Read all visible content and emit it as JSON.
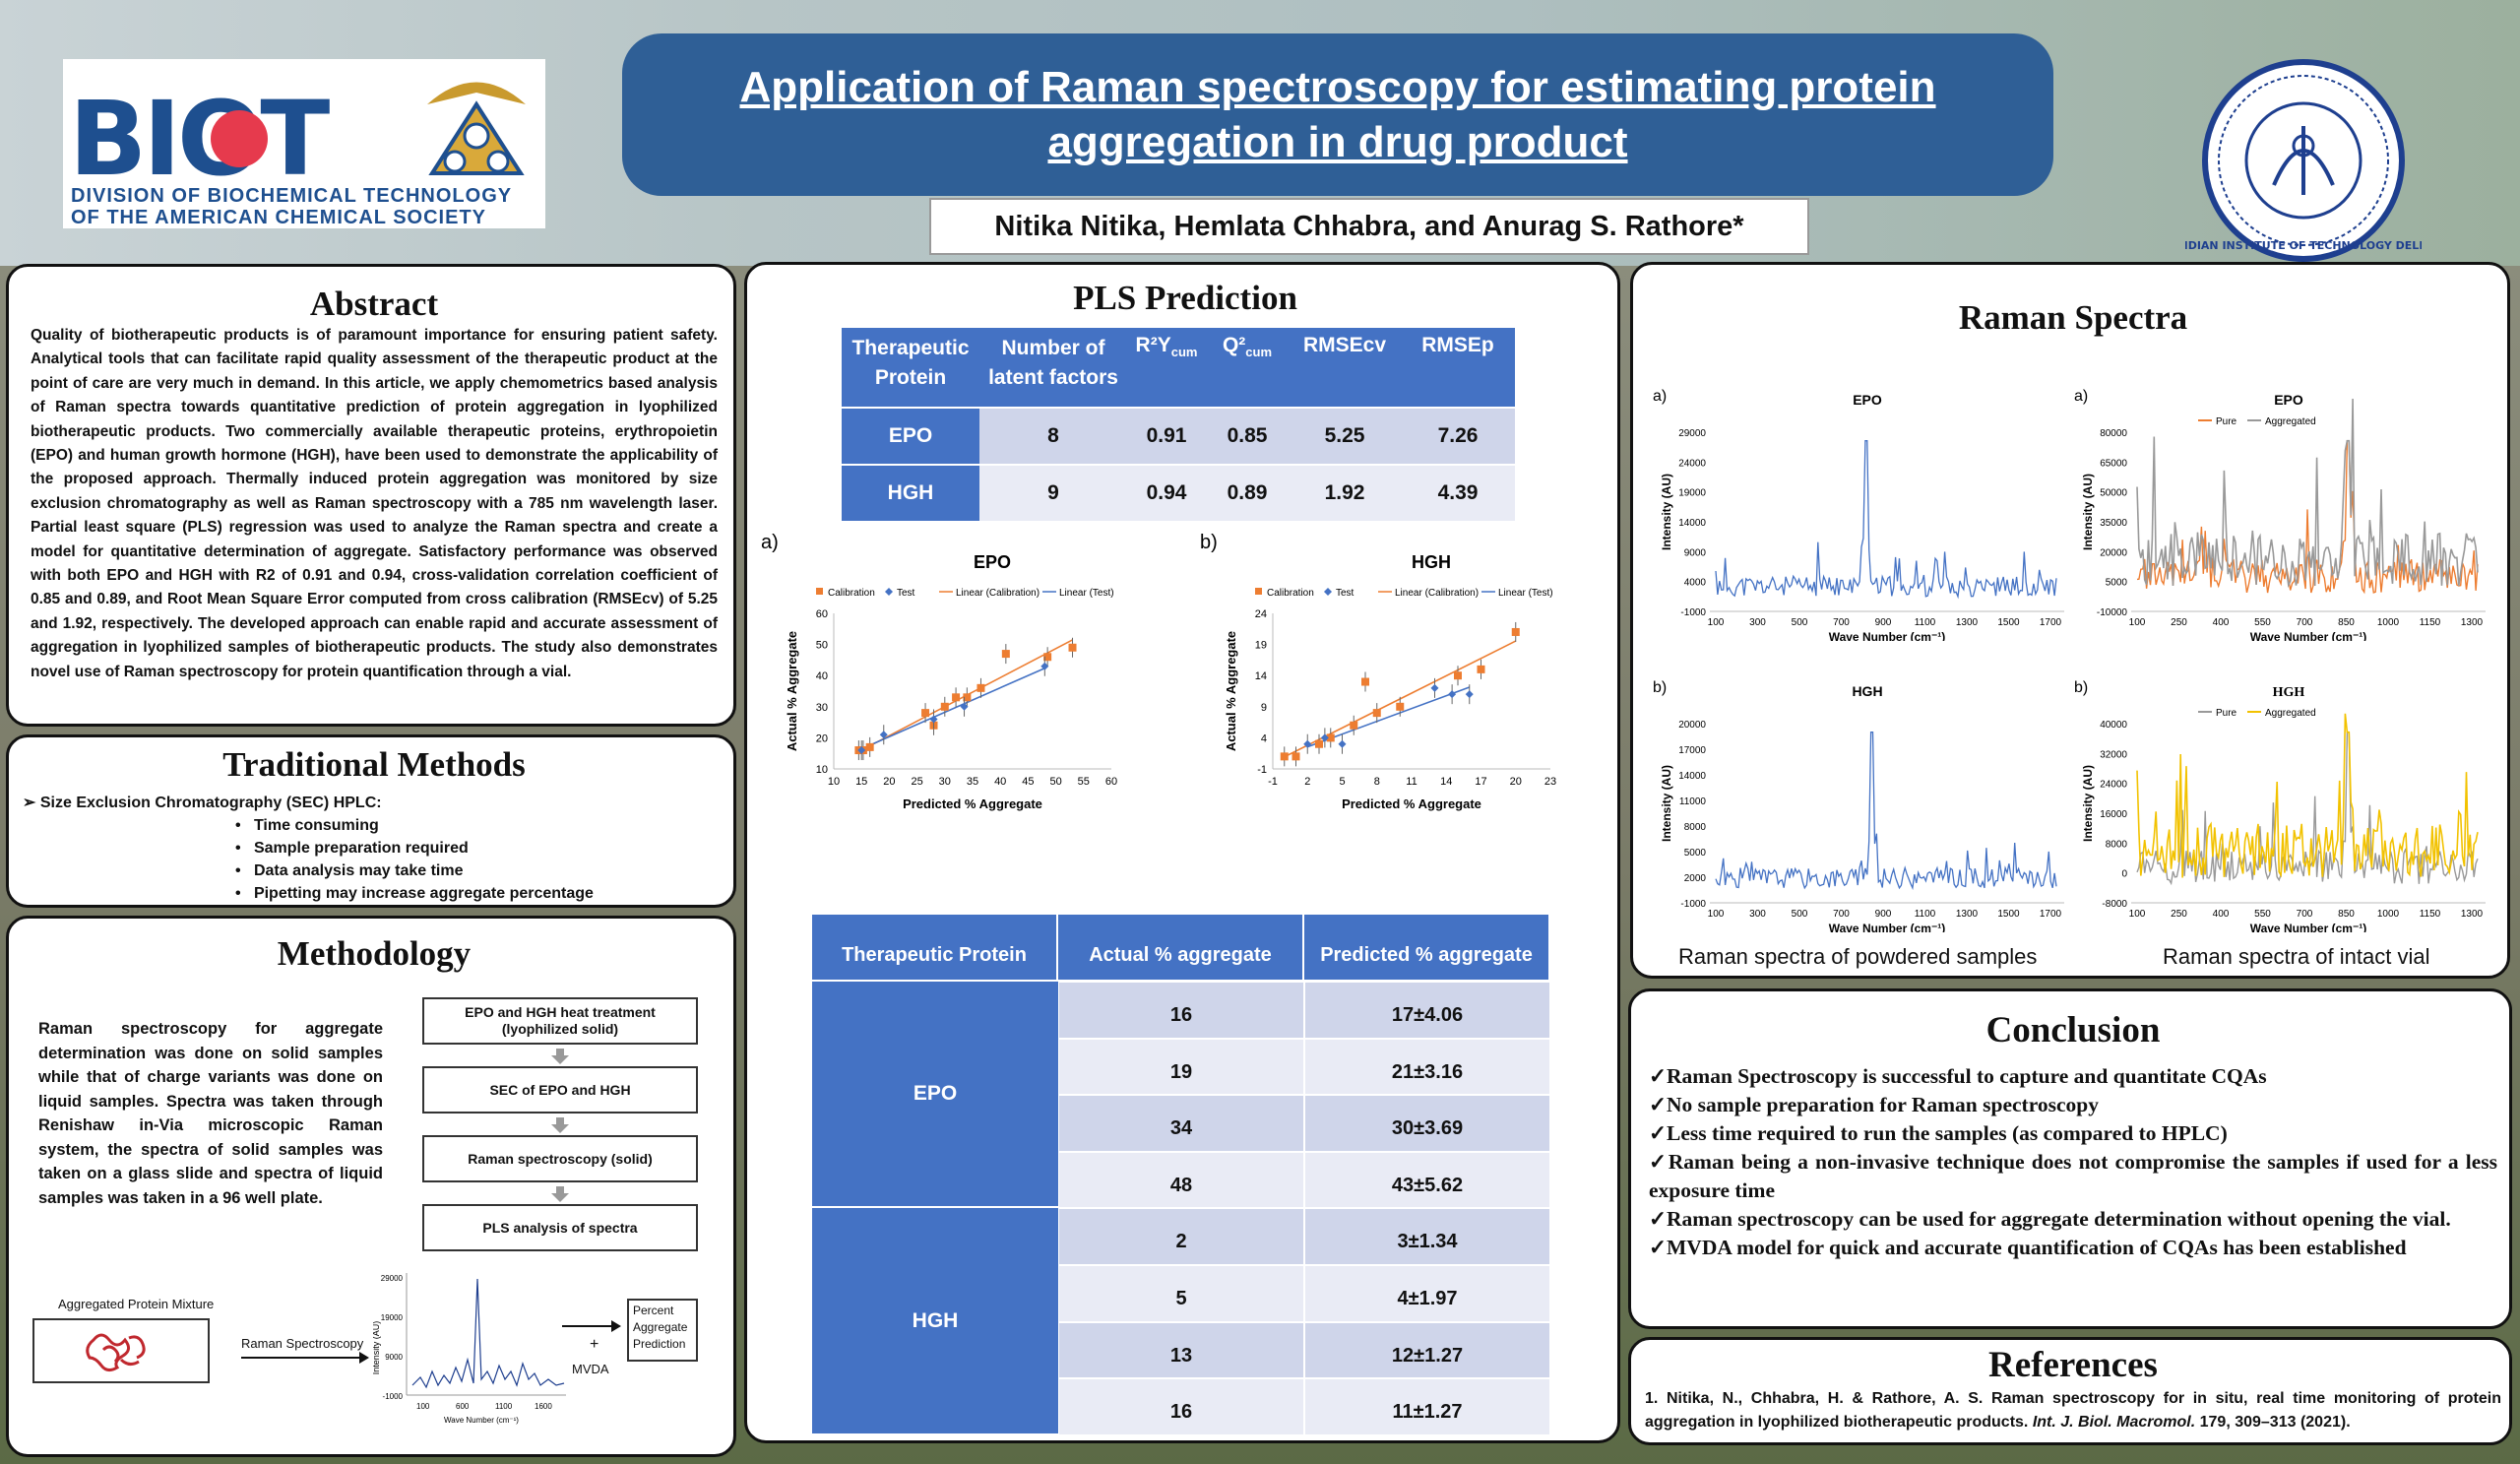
{
  "header": {
    "title": "Application of Raman spectroscopy for estimating protein aggregation in drug product",
    "authors": "Nitika Nitika, Hemlata Chhabra, and Anurag S. Rathore*",
    "biot_logo_text": "BIOT",
    "biot_subtitle_line1": "DIVISION OF BIOCHEMICAL TECHNOLOGY",
    "biot_subtitle_line2": "OF THE AMERICAN CHEMICAL SOCIETY",
    "iit_name": "INDIAN INSTITUTE OF TECHNOLOGY DELHI"
  },
  "abstract": {
    "title": "Abstract",
    "text": "Quality of biotherapeutic products is of paramount importance for ensuring patient safety. Analytical tools that can facilitate rapid quality assessment of the therapeutic product at the point of care are very much in demand. In this article, we apply chemometrics based analysis of Raman spectra towards quantitative prediction of protein aggregation in lyophilized biotherapeutic products. Two commercially available therapeutic proteins, erythropoietin (EPO) and human growth hormone (HGH), have been used to demonstrate the applicability of the proposed approach. Thermally induced protein aggregation was monitored by size exclusion chromatography as well as Raman spectroscopy with a 785 nm wavelength laser. Partial least square (PLS) regression was used to analyze the Raman spectra and create a model for quantitative determination of aggregate. Satisfactory performance was observed with both EPO and HGH with R2 of 0.91 and 0.94, cross-validation correlation coefficient of 0.85 and 0.89, and Root Mean Square Error computed from cross calibration (RMSEcv) of 5.25 and 1.92, respectively. The developed approach can enable rapid and accurate assessment of aggregation in lyophilized samples of biotherapeutic products. The study also demonstrates novel use of Raman spectroscopy for protein quantification through a vial."
  },
  "traditional": {
    "title": "Traditional Methods",
    "heading": "Size Exclusion Chromatography (SEC) HPLC:",
    "items": [
      "Time consuming",
      "Sample preparation required",
      "Data analysis may take time",
      "Pipetting may increase aggregate percentage"
    ]
  },
  "methodology": {
    "title": "Methodology",
    "text": "Raman spectroscopy for aggregate determination was done on solid samples while that of charge variants was done on liquid samples. Spectra was taken through Renishaw in-Via microscopic Raman system, the spectra of solid samples was taken on a glass slide and spectra of liquid samples was taken in a 96 well plate.",
    "flow": [
      "EPO and HGH heat treatment (lyophilized solid)",
      "SEC of EPO and HGH",
      "Raman spectroscopy (solid)",
      "PLS analysis of spectra"
    ],
    "diagram": {
      "mixture_label": "Aggregated Protein Mixture",
      "arrow_label": "Raman Spectroscopy",
      "plus": "+",
      "mvda": "MVDA",
      "output": "Percent Aggregate Prediction",
      "y_axis": "Intensity (AU)",
      "x_axis": "Wave Number (cm⁻¹)",
      "y_ticks": [
        "29000",
        "19000",
        "9000",
        "-1000"
      ],
      "x_ticks": [
        "100",
        "600",
        "1100",
        "1600"
      ]
    }
  },
  "pls": {
    "title": "PLS Prediction",
    "table_headers": [
      "Therapeutic Protein",
      "Number of latent factors",
      "R²Y",
      "cum",
      "Q²",
      "cum",
      "RMSEcv",
      "RMSEp"
    ],
    "rows": [
      {
        "protein": "EPO",
        "factors": "8",
        "r2": "0.91",
        "q2": "0.85",
        "rmsecv": "5.25",
        "rmsep": "7.26"
      },
      {
        "protein": "HGH",
        "factors": "9",
        "r2": "0.94",
        "q2": "0.89",
        "rmsecv": "1.92",
        "rmsep": "4.39"
      }
    ],
    "legend": [
      "Calibration",
      "Test",
      "Linear (Calibration)",
      "Linear (Test)"
    ],
    "chart_xlabel": "Predicted % Aggregate",
    "chart_ylabel": "Actual % Aggregate",
    "pred_headers": [
      "Therapeutic Protein",
      "Actual % aggregate",
      "Predicted % aggregate"
    ],
    "pred_groups": [
      {
        "protein": "EPO",
        "rows": [
          [
            "16",
            "17±4.06"
          ],
          [
            "19",
            "21±3.16"
          ],
          [
            "34",
            "30±3.69"
          ],
          [
            "48",
            "43±5.62"
          ]
        ]
      },
      {
        "protein": "HGH",
        "rows": [
          [
            "2",
            "3±1.34"
          ],
          [
            "5",
            "4±1.97"
          ],
          [
            "13",
            "12±1.27"
          ],
          [
            "16",
            "11±1.27"
          ]
        ]
      }
    ]
  },
  "raman": {
    "title": "Raman Spectra",
    "caption_left": "Raman spectra of powdered samples",
    "caption_right": "Raman spectra of intact vial",
    "ylabel": "Intensity (AU)",
    "xlabel": "Wave Number (cm⁻¹)",
    "legend_pure": "Pure",
    "legend_agg": "Aggregated"
  },
  "conclusion": {
    "title": "Conclusion",
    "items": [
      "✓Raman Spectroscopy is successful to capture and quantitate CQAs",
      "✓No sample preparation for Raman spectroscopy",
      "✓Less time required to run the samples (as compared to HPLC)",
      "✓Raman being a non-invasive technique does not compromise the samples if used for a less exposure time",
      "✓Raman spectroscopy can be used for aggregate determination without opening the vial.",
      "✓MVDA model for quick and accurate quantification of CQAs has been established"
    ]
  },
  "references": {
    "title": "References",
    "text_plain": "1. Nitika, N., Chhabra, H. & Rathore, A. S. Raman spectroscopy for in situ, real time monitoring of protein aggregation in lyophilized biotherapeutic products.",
    "journal": "Int. J. Biol. Macromol.",
    "tail": "179, 309–313 (2021)."
  },
  "chart_data": [
    {
      "type": "scatter",
      "title": "EPO",
      "panel_label": "a)",
      "xlabel": "Predicted % Aggregate",
      "ylabel": "Actual % Aggregate",
      "xlim": [
        10,
        60
      ],
      "ylim": [
        10,
        60
      ],
      "x_ticks": [
        "10",
        "15",
        "20",
        "25",
        "30",
        "35",
        "40",
        "45",
        "50",
        "55",
        "60"
      ],
      "y_ticks": [
        "10",
        "20",
        "30",
        "40",
        "50",
        "60"
      ],
      "series": [
        {
          "name": "Calibration",
          "x": [
            14.5,
            15.3,
            16.5,
            26.5,
            28,
            30,
            32,
            34,
            36.5,
            41,
            48.5,
            53
          ],
          "y": [
            16,
            16,
            17,
            28,
            24,
            30,
            33,
            33,
            36,
            47,
            46,
            49
          ]
        },
        {
          "name": "Test",
          "x": [
            15,
            19,
            28,
            33.5,
            48
          ],
          "y": [
            16,
            21,
            26,
            30,
            43
          ]
        }
      ]
    },
    {
      "type": "scatter",
      "title": "HGH",
      "panel_label": "b)",
      "xlabel": "Predicted % Aggregate",
      "ylabel": "Actual % Aggregate",
      "xlim": [
        -1,
        23
      ],
      "ylim": [
        -1,
        24
      ],
      "x_ticks": [
        "-1",
        "2",
        "5",
        "8",
        "11",
        "14",
        "17",
        "20",
        "23"
      ],
      "y_ticks": [
        "-1",
        "4",
        "9",
        "14",
        "19",
        "24"
      ],
      "series": [
        {
          "name": "Calibration",
          "x": [
            0,
            1,
            3,
            4,
            6,
            7,
            8,
            10,
            15,
            17,
            20
          ],
          "y": [
            1,
            1,
            3,
            4,
            6,
            13,
            8,
            9,
            14,
            15,
            21
          ]
        },
        {
          "name": "Test",
          "x": [
            2,
            3.5,
            5,
            13,
            14.5,
            16
          ],
          "y": [
            3,
            4,
            3,
            12,
            11,
            11
          ]
        }
      ]
    },
    {
      "type": "line",
      "title": "EPO",
      "panel_label": "a)",
      "xlabel": "Wave Number (cm⁻¹)",
      "ylabel": "Intensity (AU)",
      "x_ticks": [
        "100",
        "300",
        "500",
        "700",
        "900",
        "1100",
        "1300",
        "1500",
        "1700"
      ],
      "y_ticks": [
        "29000",
        "24000",
        "19000",
        "14000",
        "9000",
        "4000",
        "-1000"
      ]
    },
    {
      "type": "line",
      "title": "EPO",
      "panel_label": "a)",
      "xlabel": "Wave Number (cm⁻¹)",
      "ylabel": "Intensity (AU)",
      "series_names": [
        "Pure",
        "Aggregated"
      ],
      "x_ticks": [
        "100",
        "250",
        "400",
        "550",
        "700",
        "850",
        "1000",
        "1150",
        "1300"
      ],
      "y_ticks": [
        "80000",
        "65000",
        "50000",
        "35000",
        "20000",
        "5000",
        "-10000"
      ]
    },
    {
      "type": "line",
      "title": "HGH",
      "panel_label": "b)",
      "xlabel": "Wave Number (cm⁻¹)",
      "ylabel": "Intensity (AU)",
      "x_ticks": [
        "100",
        "300",
        "500",
        "700",
        "900",
        "1100",
        "1300",
        "1500",
        "1700"
      ],
      "y_ticks": [
        "20000",
        "17000",
        "14000",
        "11000",
        "8000",
        "5000",
        "2000",
        "-1000"
      ]
    },
    {
      "type": "line",
      "title": "HGH",
      "panel_label": "b)",
      "xlabel": "Wave Number (cm⁻¹)",
      "ylabel": "Intensity (AU)",
      "series_names": [
        "Pure",
        "Aggregated"
      ],
      "x_ticks": [
        "100",
        "250",
        "400",
        "550",
        "700",
        "850",
        "1000",
        "1150",
        "1300"
      ],
      "y_ticks": [
        "40000",
        "32000",
        "24000",
        "16000",
        "8000",
        "0",
        "-8000"
      ]
    }
  ],
  "colors": {
    "banner": "#2f5f96",
    "table_blue": "#4472c4",
    "calibration": "#ed7d31",
    "test": "#4472c4",
    "aggregated_yellow": "#f2c200",
    "pure_gray": "#999999"
  }
}
